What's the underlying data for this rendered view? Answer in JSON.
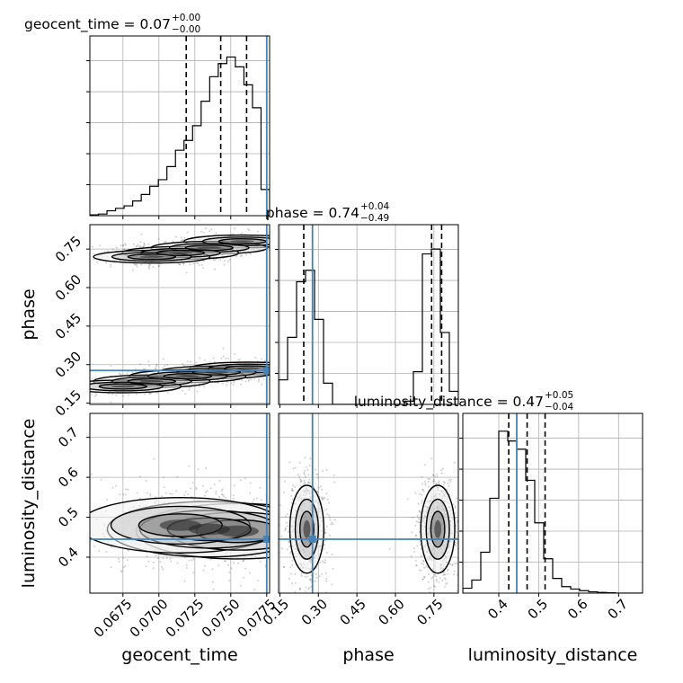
{
  "chart_data": {
    "type": "corner",
    "grid": true,
    "truth_color": "#4682b4",
    "parameters": [
      {
        "key": "geocent_time",
        "label": "geocent_time",
        "title": "geocent_time = 0.07",
        "title_sup": "+0.00",
        "title_sub": "−0.00",
        "range": [
          0.0652,
          0.0777
        ],
        "ticks": [
          0.0675,
          0.07,
          0.0725,
          0.075,
          0.0775
        ],
        "tick_labels": [
          "0.0675",
          "0.0700",
          "0.0725",
          "0.0750",
          "0.0775"
        ],
        "quantiles": [
          0.0719,
          0.0743,
          0.0761
        ],
        "truth": 0.0775,
        "hist": [
          0.005,
          0.01,
          0.03,
          0.045,
          0.06,
          0.09,
          0.13,
          0.18,
          0.22,
          0.3,
          0.4,
          0.46,
          0.55,
          0.7,
          0.85,
          0.93,
          0.97,
          0.91,
          0.8,
          0.66,
          0.16
        ]
      },
      {
        "key": "phase",
        "label": "phase",
        "title": "phase = 0.74",
        "title_sup": "+0.04",
        "title_sub": "−0.49",
        "range": [
          0.145,
          0.845
        ],
        "ticks": [
          0.15,
          0.3,
          0.45,
          0.6,
          0.75
        ],
        "tick_labels": [
          "0.15",
          "0.30",
          "0.45",
          "0.60",
          "0.75"
        ],
        "quantiles": [
          0.243,
          0.741,
          0.78
        ],
        "truth": 0.277,
        "hist": [
          0.15,
          0.41,
          0.75,
          0.82,
          0.52,
          0.13,
          0,
          0,
          0,
          0,
          0,
          0,
          0,
          0,
          0.02,
          0.2,
          0.92,
          0.95,
          0.44,
          0.08
        ]
      },
      {
        "key": "luminosity_distance",
        "label": "luminosity_distance",
        "title": "luminosity_distance = 0.47",
        "title_sup": "+0.05",
        "title_sub": "−0.04",
        "range": [
          0.31,
          0.76
        ],
        "ticks": [
          0.4,
          0.5,
          0.6,
          0.7
        ],
        "tick_labels": [
          "0.4",
          "0.5",
          "0.6",
          "0.7"
        ],
        "quantiles": [
          0.425,
          0.471,
          0.516
        ],
        "truth": 0.445,
        "hist": [
          0.03,
          0.08,
          0.25,
          0.58,
          0.99,
          0.93,
          0.88,
          0.69,
          0.43,
          0.21,
          0.09,
          0.04,
          0.025,
          0.015,
          0.008,
          0.004,
          0.002,
          0,
          0,
          0
        ]
      }
    ],
    "density_clusters": [
      {
        "x": "geocent_time",
        "y": "phase",
        "points": [
          [
            0.0758,
            0.78
          ],
          [
            0.0735,
            0.755
          ],
          [
            0.0715,
            0.735
          ],
          [
            0.0695,
            0.72
          ]
        ],
        "spread": [
          0.0016,
          0.016
        ],
        "weight": 1.0
      },
      {
        "x": "geocent_time",
        "y": "phase",
        "points": [
          [
            0.0762,
            0.285
          ],
          [
            0.074,
            0.27
          ],
          [
            0.072,
            0.255
          ],
          [
            0.0695,
            0.235
          ],
          [
            0.0675,
            0.215
          ]
        ],
        "spread": [
          0.0016,
          0.016
        ],
        "weight": 1.0
      },
      {
        "x": "geocent_time",
        "y": "luminosity_distance",
        "points": [
          [
            0.0755,
            0.465
          ],
          [
            0.0735,
            0.47
          ],
          [
            0.0715,
            0.48
          ]
        ],
        "spread": [
          0.0028,
          0.045
        ],
        "weight": 1.0
      },
      {
        "x": "phase",
        "y": "luminosity_distance",
        "points": [
          [
            0.255,
            0.47
          ]
        ],
        "spread": [
          0.03,
          0.05
        ],
        "weight": 1.0
      },
      {
        "x": "phase",
        "y": "luminosity_distance",
        "points": [
          [
            0.765,
            0.47
          ]
        ],
        "spread": [
          0.03,
          0.05
        ],
        "weight": 1.0
      }
    ]
  }
}
